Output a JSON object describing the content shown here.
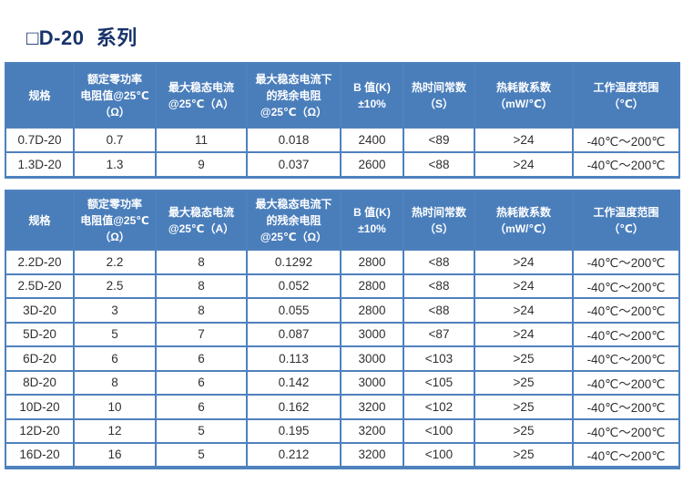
{
  "page": {
    "title": "□D-20  系列",
    "colors": {
      "title": "#17336B",
      "header-bg": "#4A7EBB",
      "table-border": "#4E81BD",
      "header-text": "#FFFFFF",
      "cell-text": "#303030"
    }
  },
  "headers": [
    "规格",
    "额定零功率\n电阻值@25℃\n（Ω）",
    "最大稳态电流\n@25℃（A）",
    "最大稳态电流下\n的残余电阻\n@25℃（Ω）",
    "B 值(K)\n±10%",
    "热时间常数\n（S）",
    "热耗散系数\n（mW/℃）",
    "工作温度范围\n（℃）"
  ],
  "table1": {
    "rows": [
      [
        "0.7D-20",
        "0.7",
        "11",
        "0.018",
        "2400",
        "<89",
        ">24",
        "-40℃～200℃"
      ],
      [
        "1.3D-20",
        "1.3",
        "9",
        "0.037",
        "2600",
        "<88",
        ">24",
        "-40℃～200℃"
      ]
    ]
  },
  "table2": {
    "rows": [
      [
        "2.2D-20",
        "2.2",
        "8",
        "0.1292",
        "2800",
        "<88",
        ">24",
        "-40℃～200℃"
      ],
      [
        "2.5D-20",
        "2.5",
        "8",
        "0.052",
        "2800",
        "<88",
        ">24",
        "-40℃～200℃"
      ],
      [
        "3D-20",
        "3",
        "8",
        "0.055",
        "2800",
        "<88",
        ">24",
        "-40℃～200℃"
      ],
      [
        "5D-20",
        "5",
        "7",
        "0.087",
        "3000",
        "<87",
        ">24",
        "-40℃～200℃"
      ],
      [
        "6D-20",
        "6",
        "6",
        "0.113",
        "3000",
        "<103",
        ">25",
        "-40℃～200℃"
      ],
      [
        "8D-20",
        "8",
        "6",
        "0.142",
        "3000",
        "<105",
        ">25",
        "-40℃～200℃"
      ],
      [
        "10D-20",
        "10",
        "6",
        "0.162",
        "3200",
        "<102",
        ">25",
        "-40℃～200℃"
      ],
      [
        "12D-20",
        "12",
        "5",
        "0.195",
        "3200",
        "<100",
        ">25",
        "-40℃～200℃"
      ],
      [
        "16D-20",
        "16",
        "5",
        "0.212",
        "3200",
        "<100",
        ">25",
        "-40℃～200℃"
      ]
    ]
  }
}
